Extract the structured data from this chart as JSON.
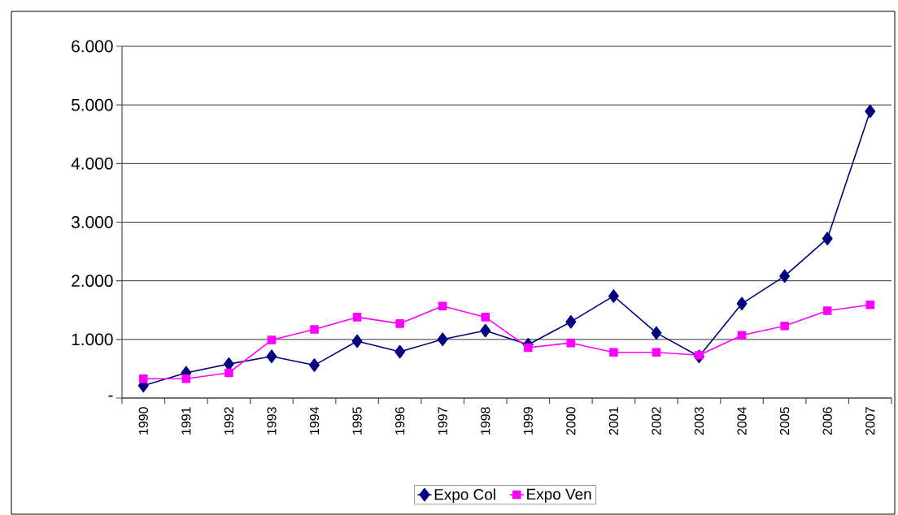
{
  "chart_data": {
    "type": "line",
    "categories": [
      "1990",
      "1991",
      "1992",
      "1993",
      "1994",
      "1995",
      "1996",
      "1997",
      "1998",
      "1999",
      "2000",
      "2001",
      "2002",
      "2003",
      "2004",
      "2005",
      "2006",
      "2007"
    ],
    "series": [
      {
        "name": "Expo Col",
        "color": "#000080",
        "marker": "diamond",
        "values": [
          210,
          430,
          580,
          710,
          560,
          970,
          790,
          1000,
          1150,
          910,
          1300,
          1740,
          1110,
          710,
          1610,
          2080,
          2720,
          4890
        ]
      },
      {
        "name": "Expo Ven",
        "color": "#ff00ff",
        "marker": "square",
        "values": [
          330,
          330,
          430,
          990,
          1170,
          1380,
          1270,
          1570,
          1380,
          860,
          940,
          780,
          780,
          730,
          1070,
          1230,
          1490,
          1590
        ]
      }
    ],
    "ylim": [
      0,
      6000
    ],
    "yticks": [
      {
        "value": 0,
        "label": "-"
      },
      {
        "value": 1000,
        "label": "1.000"
      },
      {
        "value": 2000,
        "label": "2.000"
      },
      {
        "value": 3000,
        "label": "3.000"
      },
      {
        "value": 4000,
        "label": "4.000"
      },
      {
        "value": 5000,
        "label": "5.000"
      },
      {
        "value": 6000,
        "label": "6.000"
      }
    ],
    "grid": "y",
    "legend": "bottom",
    "line_style": "solid"
  }
}
